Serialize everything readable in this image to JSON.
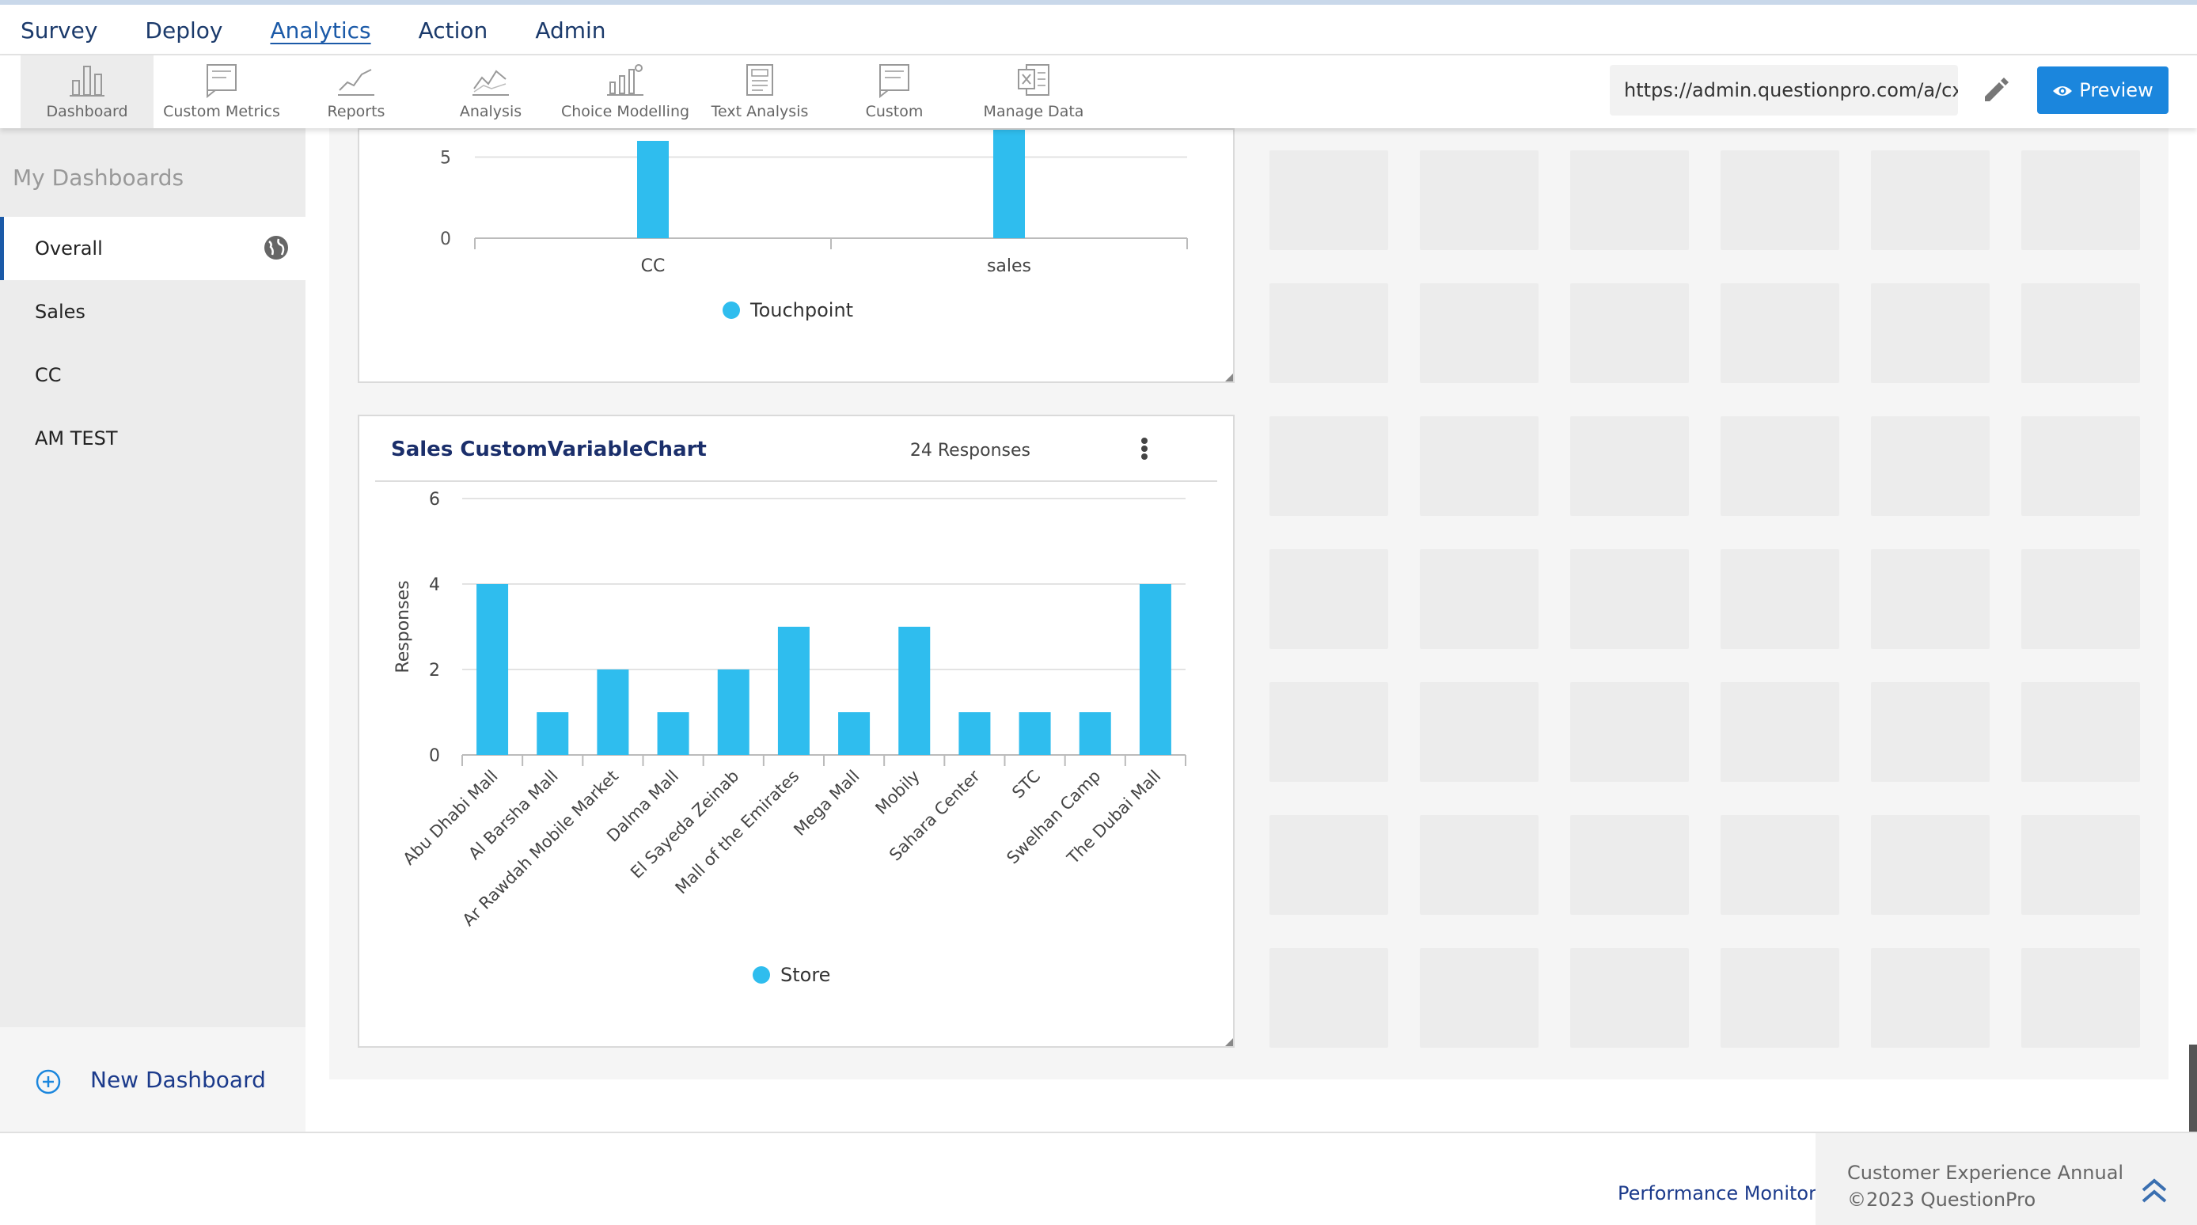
{
  "top_nav": [
    {
      "label": "Survey",
      "active": false
    },
    {
      "label": "Deploy",
      "active": false
    },
    {
      "label": "Analytics",
      "active": true
    },
    {
      "label": "Action",
      "active": false
    },
    {
      "label": "Admin",
      "active": false
    }
  ],
  "toolbar": {
    "tools": [
      {
        "label": "Dashboard",
        "icon": "bar-chart-icon"
      },
      {
        "label": "Custom Metrics",
        "icon": "custom-metrics-icon"
      },
      {
        "label": "Reports",
        "icon": "line-chart-icon"
      },
      {
        "label": "Analysis",
        "icon": "analysis-icon"
      },
      {
        "label": "Choice Modelling",
        "icon": "choice-modelling-icon"
      },
      {
        "label": "Text Analysis",
        "icon": "text-analysis-icon"
      },
      {
        "label": "Custom",
        "icon": "custom-icon"
      },
      {
        "label": "Manage Data",
        "icon": "excel-icon"
      }
    ],
    "url": "https://admin.questionpro.com/a/cxl",
    "preview_label": "Preview"
  },
  "sidebar": {
    "title": "My Dashboards",
    "items": [
      {
        "label": "Overall",
        "active": true
      },
      {
        "label": "Sales",
        "active": false
      },
      {
        "label": "CC",
        "active": false
      },
      {
        "label": "AM TEST",
        "active": false
      }
    ],
    "new_dashboard_label": "New Dashboard"
  },
  "chart_top": {
    "type": "bar",
    "categories": [
      "CC",
      "sales"
    ],
    "series": [
      {
        "name": "Touchpoint",
        "values": [
          6,
          7
        ]
      }
    ],
    "y_ticks": [
      "0",
      "5"
    ],
    "ylim": [
      0,
      7
    ],
    "color": "#2fbdee"
  },
  "chart_data": {
    "type": "bar",
    "title": "Sales CustomVariableChart",
    "responses": "24 Responses",
    "ylabel": "Responses",
    "ylim": [
      0,
      6
    ],
    "y_ticks": [
      "0",
      "2",
      "4",
      "6"
    ],
    "categories": [
      "Abu Dhabi Mall",
      "Al Barsha Mall",
      "Ar Rawdah Mobile Market",
      "Dalma Mall",
      "El Sayeda Zeinab",
      "Mall of the Emirates",
      "Mega Mall",
      "Mobily",
      "Sahara Center",
      "STC",
      "Swelhan Camp",
      "The Dubai Mall"
    ],
    "series": [
      {
        "name": "Store",
        "values": [
          4,
          1,
          2,
          1,
          2,
          3,
          1,
          3,
          1,
          1,
          1,
          4
        ]
      }
    ],
    "color": "#2fbdee",
    "grid": true,
    "legend": "bottom"
  },
  "footer": {
    "performance_label": "Performance Monitor",
    "copy_line1": "Customer Experience Annual",
    "copy_line2": "©2023 QuestionPro"
  }
}
